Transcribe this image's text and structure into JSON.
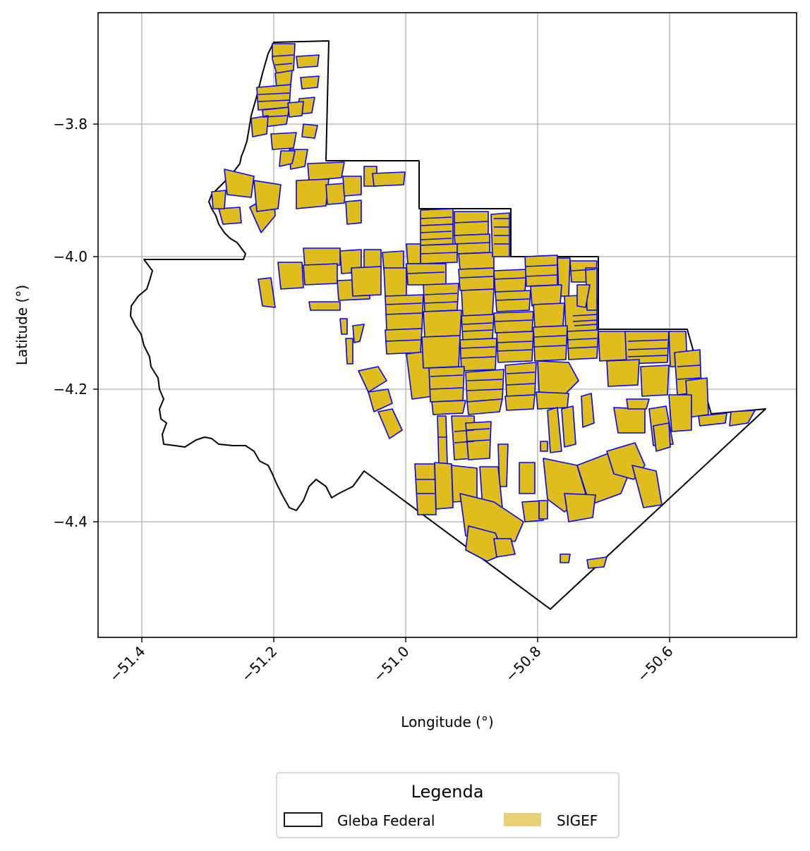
{
  "colors": {
    "gleba_edge": "#000000",
    "sigef_fill": "#DFBD1C",
    "sigef_edge": "#0000FF",
    "legend_sigef_patch": "#E8D275",
    "grid": "#b0b0b0"
  },
  "map": {
    "xlabel": "Longitude (°)",
    "ylabel": "Latitude (°)",
    "x_ticks": [
      "−51.4",
      "−51.2",
      "−51.0",
      "−50.8",
      "−50.6"
    ],
    "y_ticks": [
      "−3.8",
      "−4.0",
      "−4.2",
      "−4.4"
    ],
    "xlim": [
      -51.467,
      -50.407
    ],
    "ylim": [
      -4.575,
      -3.63
    ],
    "grid": true
  },
  "legend": {
    "title": "Legenda",
    "placement": "below-center",
    "entries": [
      {
        "label": "Gleba Federal",
        "style": "outline"
      },
      {
        "label": "SIGEF",
        "style": "filled"
      }
    ]
  },
  "chart_data": {
    "type": "map",
    "layers": [
      {
        "name": "Gleba Federal",
        "geometry": "polygon outline"
      },
      {
        "name": "SIGEF",
        "geometry": "filled parcels"
      }
    ]
  }
}
